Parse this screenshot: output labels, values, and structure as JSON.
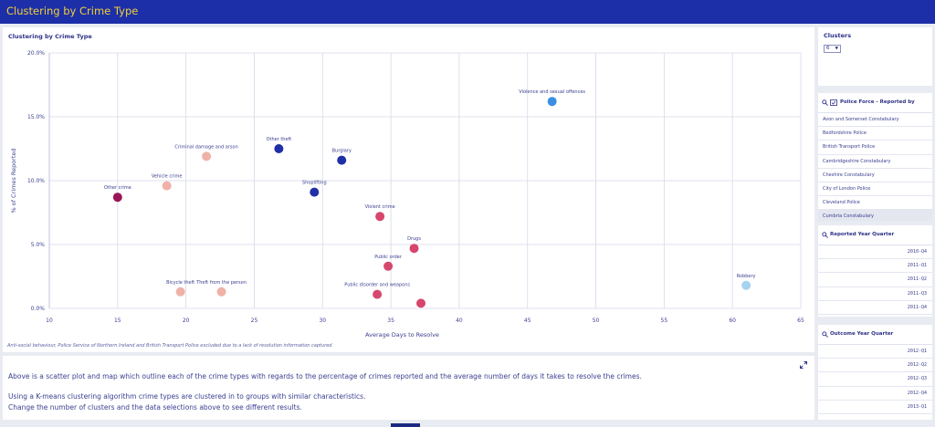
{
  "app": {
    "title": "Clustering by Crime Type"
  },
  "chart_panel": {
    "title": "Clustering by Crime Type",
    "footnote": "Anti-social behaviour, Police Service of Northern Ireland and British Transport Police excluded due to a lack of resolution information captured"
  },
  "chart_data": {
    "type": "scatter",
    "title": "Clustering by Crime Type",
    "xlabel": "Average Days to Resolve",
    "ylabel": "% of Crimes Reported",
    "xlim": [
      10,
      65
    ],
    "ylim": [
      0,
      20
    ],
    "x_ticks": [
      "10",
      "15",
      "20",
      "25",
      "30",
      "35",
      "40",
      "45",
      "50",
      "55",
      "60",
      "65"
    ],
    "y_ticks": [
      "0.0%",
      "5.0%",
      "10.0%",
      "15.0%",
      "20.0%"
    ],
    "grid": true,
    "points": [
      {
        "label": "Other crime",
        "x": 15.0,
        "y": 8.7,
        "color": "#9a1557"
      },
      {
        "label": "Vehicle crime",
        "x": 18.6,
        "y": 9.6,
        "color": "#f0b1a6"
      },
      {
        "label": "Criminal damage and arson",
        "x": 21.5,
        "y": 11.9,
        "color": "#f0b1a6"
      },
      {
        "label": "Bicycle theft",
        "x": 19.6,
        "y": 1.3,
        "color": "#f0b1a6"
      },
      {
        "label": "Theft from the person",
        "x": 22.6,
        "y": 1.3,
        "color": "#f0b1a6"
      },
      {
        "label": "Other theft",
        "x": 26.8,
        "y": 12.5,
        "color": "#1f2fa6"
      },
      {
        "label": "Burglary",
        "x": 31.4,
        "y": 11.6,
        "color": "#1f2fa6"
      },
      {
        "label": "Shoplifting",
        "x": 29.4,
        "y": 9.1,
        "color": "#1f2fa6"
      },
      {
        "label": "Violent crime",
        "x": 34.2,
        "y": 7.2,
        "color": "#d7466d"
      },
      {
        "label": "Drugs",
        "x": 36.7,
        "y": 4.7,
        "color": "#d7466d"
      },
      {
        "label": "Public order",
        "x": 34.8,
        "y": 3.3,
        "color": "#d7466d"
      },
      {
        "label": "Public disorder and weapons",
        "x": 34.0,
        "y": 1.1,
        "color": "#d7466d"
      },
      {
        "label": "",
        "x": 37.2,
        "y": 0.4,
        "color": "#d7466d"
      },
      {
        "label": "Violence and sexual offences",
        "x": 46.8,
        "y": 16.2,
        "color": "#3a8fe3"
      },
      {
        "label": "Robbery",
        "x": 61.0,
        "y": 1.8,
        "color": "#a6d3f2"
      }
    ]
  },
  "description": {
    "line1": "Above is a scatter plot and map which outline each of the crime types with regards to the percentage of crimes reported and the average number of days it takes to resolve the crimes.",
    "line2": "Using a K-means clustering algorithm crime types are clustered in to groups with similar characteristics.",
    "line3": "Change the number of clusters and the data selections above to see different results."
  },
  "clusters": {
    "title": "Clusters",
    "value": "6"
  },
  "police_force_filter": {
    "title": "Police Force - Reported by",
    "items": [
      "Avon and Somerset Constabulary",
      "Bedfordshire Police",
      "British Transport Police",
      "Cambridgeshire Constabulary",
      "Cheshire Constabulary",
      "City of London Police",
      "Cleveland Police",
      "Cumbria Constabulary"
    ]
  },
  "reported_quarter_filter": {
    "title": "Reported Year Quarter",
    "items": [
      "2010-Q4",
      "2011-Q1",
      "2011-Q2",
      "2011-Q3",
      "2011-Q4"
    ]
  },
  "outcome_quarter_filter": {
    "title": "Outcome Year Quarter",
    "items": [
      "2012-Q1",
      "2012-Q2",
      "2012-Q3",
      "2012-Q4",
      "2013-Q1"
    ]
  },
  "colors": {
    "topbar": "#1c2fa8",
    "title_yellow": "#f2cf37",
    "text": "#3a3f8f"
  }
}
